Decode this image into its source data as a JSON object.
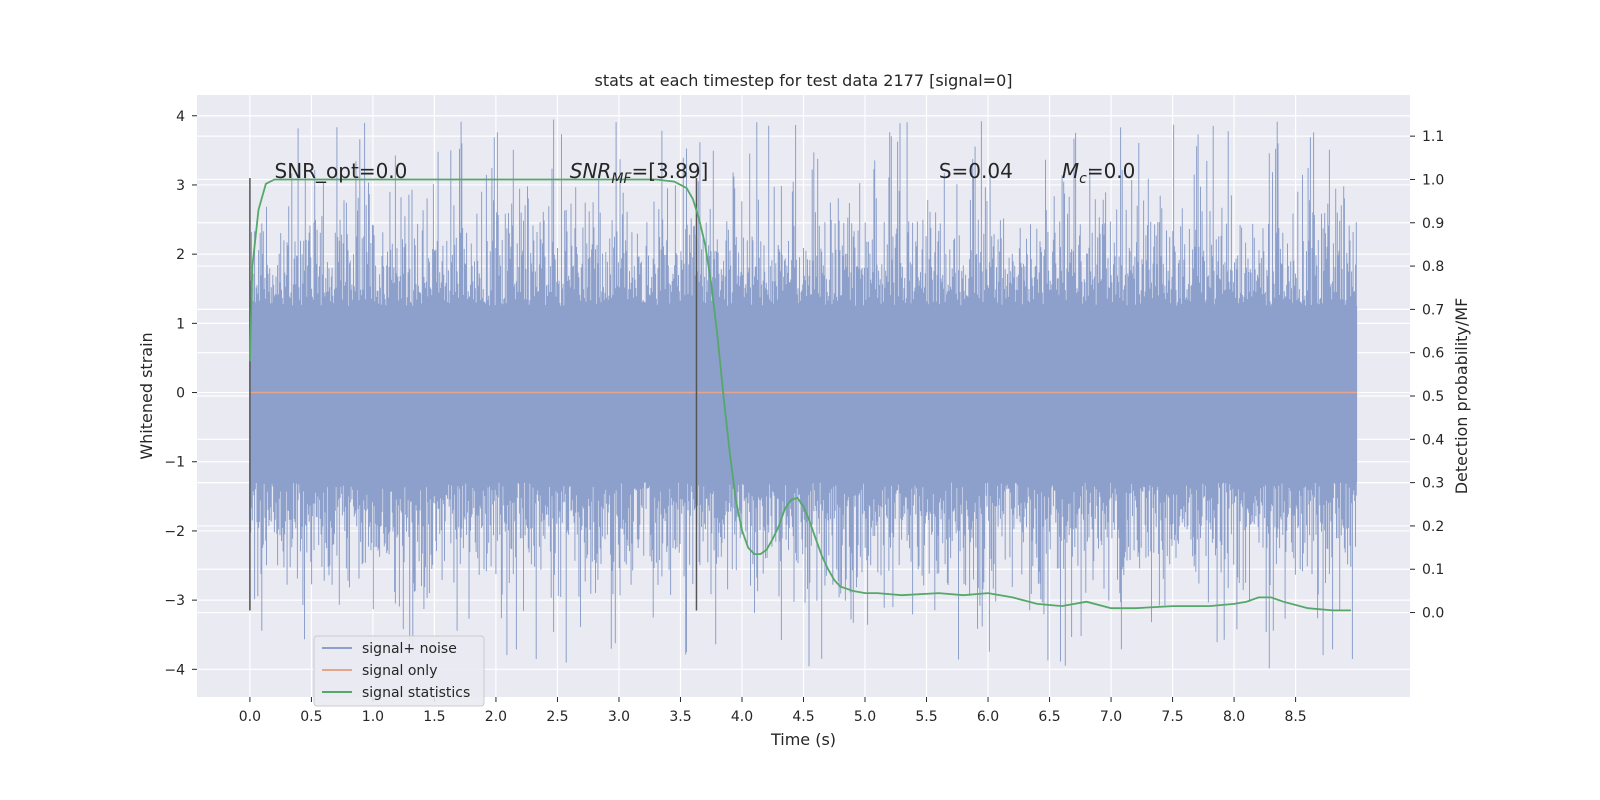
{
  "chart_data": {
    "type": "line",
    "title": "stats at each timestep for test data 2177 [signal=0]",
    "xlabel": "Time (s)",
    "ylabel_left": "Whitened strain",
    "ylabel_right": "Detection probability/MF",
    "xlim": [
      -0.43,
      9.43
    ],
    "ylim_left": [
      -4.4,
      4.3
    ],
    "ylim_right": [
      -0.195,
      1.195
    ],
    "x_ticks": [
      "0.0",
      "0.5",
      "1.0",
      "1.5",
      "2.0",
      "2.5",
      "3.0",
      "3.5",
      "4.0",
      "4.5",
      "5.0",
      "5.5",
      "6.0",
      "6.5",
      "7.0",
      "7.5",
      "8.0",
      "8.5"
    ],
    "y_left_ticks": [
      "4",
      "3",
      "2",
      "1",
      "0",
      "−1",
      "−2",
      "−3",
      "−4"
    ],
    "y_right_ticks": [
      "1.1",
      "1.0",
      "0.9",
      "0.8",
      "0.7",
      "0.6",
      "0.5",
      "0.4",
      "0.3",
      "0.2",
      "0.1",
      "0.0"
    ],
    "grid": true,
    "legend_position": "lower-left",
    "annotations": [
      {
        "text": "SNR_opt=0.0",
        "x": 0.2,
        "y": 3.1
      },
      {
        "text": "SNR",
        "sub": "MF",
        "suffix": "=[3.89]",
        "x": 2.6,
        "y": 3.1
      },
      {
        "text": "S",
        "suffix": "=0.04",
        "x": 5.6,
        "y": 3.1
      },
      {
        "text": "M",
        "sub": "c",
        "suffix": "=0.0",
        "x": 6.6,
        "y": 3.1
      }
    ],
    "vertical_lines": [
      {
        "x": 0.0,
        "y0": -3.15,
        "y1": 3.1
      },
      {
        "x": 3.63,
        "y0": -3.15,
        "y1": 3.1
      }
    ],
    "series": [
      {
        "name": "signal+ noise",
        "axis": "left",
        "color": "#8da0cb",
        "kind": "noise",
        "x_range": [
          0.0,
          9.0
        ],
        "band_dense": [
          -1.3,
          1.25
        ],
        "typical_range": [
          -2.6,
          2.6
        ],
        "extremes_range": [
          -4.0,
          3.95
        ]
      },
      {
        "name": "signal only",
        "axis": "left",
        "color": "#e5a58a",
        "kind": "flat",
        "x": [
          0.0,
          9.0
        ],
        "y": [
          0.0,
          0.0
        ]
      },
      {
        "name": "signal statistics",
        "axis": "right",
        "color": "#55a868",
        "kind": "line",
        "x": [
          0.0,
          0.02,
          0.07,
          0.13,
          0.2,
          0.3,
          0.5,
          1.0,
          2.0,
          3.0,
          3.3,
          3.45,
          3.55,
          3.6,
          3.65,
          3.7,
          3.75,
          3.8,
          3.85,
          3.9,
          3.95,
          4.0,
          4.05,
          4.1,
          4.15,
          4.2,
          4.25,
          4.3,
          4.35,
          4.4,
          4.45,
          4.5,
          4.55,
          4.6,
          4.65,
          4.7,
          4.75,
          4.8,
          4.85,
          4.9,
          5.0,
          5.1,
          5.3,
          5.6,
          5.8,
          6.0,
          6.2,
          6.4,
          6.6,
          6.8,
          7.0,
          7.2,
          7.5,
          7.8,
          8.0,
          8.1,
          8.2,
          8.3,
          8.4,
          8.6,
          8.8,
          8.95
        ],
        "y": [
          0.58,
          0.8,
          0.93,
          0.99,
          1.0,
          1.0,
          1.0,
          1.0,
          1.0,
          1.0,
          1.0,
          0.995,
          0.98,
          0.955,
          0.91,
          0.85,
          0.76,
          0.64,
          0.5,
          0.37,
          0.26,
          0.19,
          0.15,
          0.135,
          0.135,
          0.145,
          0.17,
          0.2,
          0.24,
          0.26,
          0.265,
          0.245,
          0.21,
          0.17,
          0.13,
          0.1,
          0.075,
          0.06,
          0.055,
          0.05,
          0.045,
          0.045,
          0.04,
          0.045,
          0.04,
          0.045,
          0.035,
          0.02,
          0.015,
          0.025,
          0.01,
          0.01,
          0.015,
          0.015,
          0.02,
          0.025,
          0.035,
          0.035,
          0.025,
          0.01,
          0.005,
          0.005
        ]
      }
    ]
  }
}
